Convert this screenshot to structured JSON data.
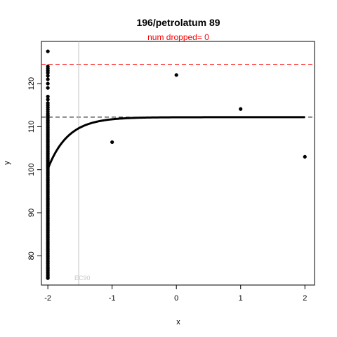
{
  "chart_data": {
    "type": "scatter",
    "title": "196/petrolatum 89",
    "subtitle": "num dropped= 0",
    "xlabel": "x",
    "ylabel": "y",
    "xlim": [
      -2.1,
      2.15
    ],
    "ylim": [
      73.2,
      129.8
    ],
    "x_ticks": [
      -2,
      -1,
      0,
      1,
      2
    ],
    "y_ticks": [
      80,
      90,
      100,
      110,
      120
    ],
    "annotation": {
      "text": "EC90",
      "x": -1.52,
      "y": 74
    },
    "reference_lines": {
      "upper_red_dashed": 124.5,
      "mid_black_dashed": 112.2,
      "vertical_gray_x": -1.52
    },
    "colors": {
      "points": "#000000",
      "curve": "#000000",
      "red_line": "#ff0000",
      "black_dashed": "#000000",
      "vertical_line": "#c0c0c0",
      "subtitle": "#ff0000"
    },
    "fitted_curve": {
      "x_start": -2,
      "x_end": 2,
      "min": 100.2,
      "max": 112.2,
      "rate": 3.2
    },
    "points": {
      "x_neg2_values": [
        127.5,
        124.0,
        123.5,
        123.0,
        122.5,
        121.8,
        121.0,
        120.0,
        119.0,
        117.0,
        116.3,
        115.5,
        115.0,
        114.5,
        114.0,
        113.5,
        113.0,
        112.6,
        112.2,
        111.8,
        111.4,
        111.0,
        110.6,
        110.2,
        109.8,
        109.4,
        109.0,
        108.6,
        108.2,
        107.8,
        107.4,
        107.0,
        106.6,
        106.2,
        105.8,
        105.4,
        105.0,
        104.6,
        104.2,
        103.8,
        103.4,
        103.0,
        102.6,
        102.2,
        101.8,
        101.4,
        101.0,
        100.6,
        100.2,
        99.8,
        99.4,
        99.0,
        98.6,
        98.2,
        97.8,
        97.4,
        97.0,
        96.6,
        96.2,
        95.8,
        95.4,
        95.0,
        94.6,
        94.2,
        93.8,
        93.4,
        93.0,
        92.6,
        92.2,
        91.8,
        91.4,
        91.0,
        90.6,
        90.2,
        89.8,
        89.4,
        89.0,
        88.6,
        88.2,
        87.8,
        87.4,
        87.0,
        86.6,
        86.2,
        85.8,
        85.4,
        85.0,
        84.6,
        84.2,
        83.8,
        83.4,
        83.0,
        82.6,
        82.2,
        81.8,
        81.4,
        81.0,
        80.6,
        80.2,
        79.8,
        79.4,
        79.0,
        78.6,
        78.2,
        77.8,
        77.4,
        77.0,
        76.6,
        76.2,
        75.8,
        75.4,
        75.0,
        74.8
      ],
      "others": [
        {
          "x": -1,
          "y": 106.4
        },
        {
          "x": 0,
          "y": 122.0
        },
        {
          "x": 1,
          "y": 114.1
        },
        {
          "x": 2,
          "y": 103.0
        }
      ]
    }
  }
}
